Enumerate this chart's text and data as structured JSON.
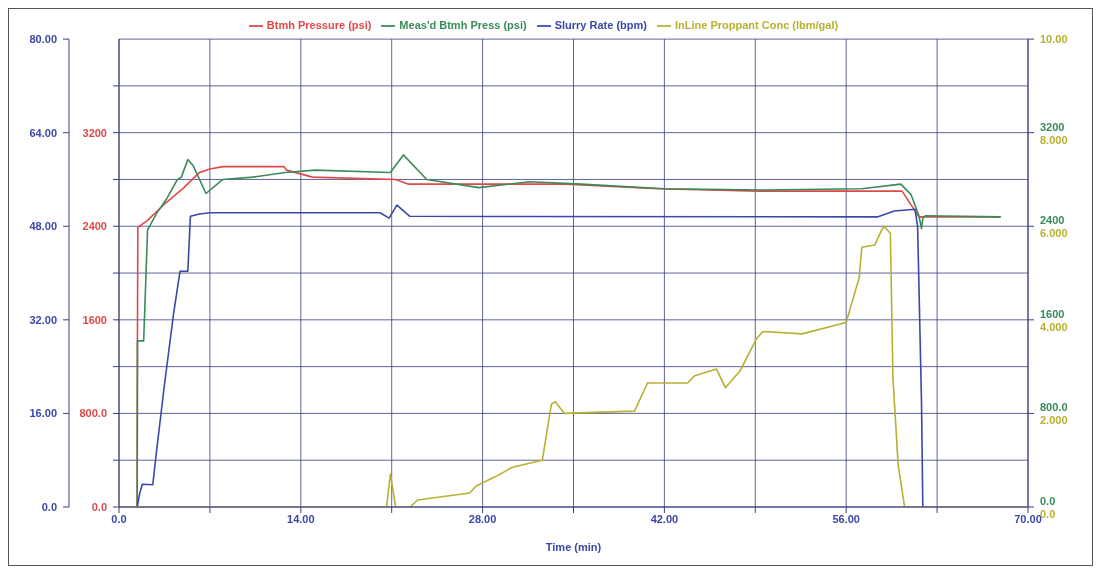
{
  "chart_data": {
    "type": "line",
    "xlabel": "Time (min)",
    "xlim": [
      0,
      70
    ],
    "xticks": [
      {
        "value": 0,
        "label": "0.0"
      },
      {
        "value": 7,
        "label": null
      },
      {
        "value": 14,
        "label": "14.00"
      },
      {
        "value": 21,
        "label": null
      },
      {
        "value": 28,
        "label": "28.00"
      },
      {
        "value": 35,
        "label": null
      },
      {
        "value": 42,
        "label": "42.00"
      },
      {
        "value": 49,
        "label": null
      },
      {
        "value": 56,
        "label": "56.00"
      },
      {
        "value": 63,
        "label": null
      },
      {
        "value": 70,
        "label": "70.00"
      }
    ],
    "ylim": [
      0,
      4000
    ],
    "yticks": [
      {
        "value": 0,
        "label": "0.0"
      },
      {
        "value": 400,
        "label": null
      },
      {
        "value": 800,
        "label": "800.0"
      },
      {
        "value": 1200,
        "label": null
      },
      1600,
      {
        "value": 2000,
        "label": null
      },
      2400,
      {
        "value": 2800,
        "label": null
      },
      3200,
      {
        "value": 3600,
        "label": null
      }
    ],
    "y2lim": [
      0,
      10
    ],
    "y2ticks": [
      {
        "value": 0,
        "label": "0.0"
      },
      {
        "value": 2,
        "label": "2.000"
      },
      {
        "value": 4,
        "label": "4.000"
      },
      {
        "value": 6,
        "label": "6.000"
      },
      {
        "value": 8,
        "label": "8.000"
      },
      {
        "value": 10,
        "label": "10.00"
      }
    ],
    "annotations": [
      "0.0",
      "800.0",
      "1600",
      "2400",
      "3200"
    ],
    "y3lim": [
      0,
      80
    ],
    "y3ticks": [
      {
        "value": 0,
        "label": "0.0"
      },
      {
        "value": 16,
        "label": "16.00"
      },
      {
        "value": 32,
        "label": "32.00"
      },
      {
        "value": 48,
        "label": "48.00"
      },
      {
        "value": 64,
        "label": "64.00"
      },
      {
        "value": 80,
        "label": "80.00"
      }
    ],
    "grid": true,
    "legend": "top",
    "line_style": "solid",
    "marker": "none",
    "series": [
      {
        "name": "Btmh Pressure (psi)",
        "color": "#e04848",
        "x": [
          1.4,
          1.42,
          1.45,
          2.2,
          3.5,
          5.0,
          6.2,
          7.0,
          8.0,
          12.7,
          12.9,
          14.9,
          21.3,
          22.3,
          28,
          34.4,
          41.5,
          49.3,
          58.5,
          60.3,
          61.6,
          67.9
        ],
        "values": [
          0,
          1440,
          2390,
          2450,
          2590,
          2730,
          2860,
          2890,
          2910,
          2910,
          2880,
          2820,
          2800,
          2760,
          2760,
          2760,
          2720,
          2700,
          2700,
          2700,
          2480,
          2480
        ]
      },
      {
        "name": "Meas'd Btmh Press (psi)",
        "color": "#3a8a5a",
        "x": [
          1.4,
          1.42,
          1.9,
          2.2,
          2.9,
          3.7,
          4.5,
          4.8,
          5.3,
          5.7,
          6.7,
          8.0,
          10.3,
          12.8,
          15.1,
          20.9,
          21.9,
          23.7,
          27.7,
          31.6,
          35.6,
          42,
          49.6,
          57.2,
          60.2,
          61,
          61.6,
          61.8,
          61.9,
          62.1,
          67.9
        ],
        "values": [
          0,
          1420,
          1420,
          2370,
          2510,
          2640,
          2800,
          2820,
          2970,
          2920,
          2680,
          2800,
          2820,
          2860,
          2880,
          2860,
          3010,
          2800,
          2730,
          2780,
          2760,
          2720,
          2710,
          2720,
          2760,
          2670,
          2490,
          2380,
          2470,
          2490,
          2480
        ]
      },
      {
        "name": "Slurry Rate (bpm)",
        "axis": "y3",
        "color": "#3a48a8",
        "x": [
          1.4,
          1.6,
          1.8,
          2.6,
          2.9,
          3.5,
          4.2,
          4.7,
          5.3,
          5.5,
          6.2,
          7.0,
          20.1,
          20.8,
          21.4,
          22.4,
          58.4,
          59.7,
          61.3,
          61.5,
          61.8,
          61.9,
          62.2
        ],
        "values": [
          0,
          2.4,
          3.9,
          3.8,
          9.7,
          20.9,
          33,
          40.3,
          40.3,
          49.7,
          50.1,
          50.3,
          50.3,
          49.4,
          51.6,
          49.7,
          49.6,
          50.6,
          50.9,
          48,
          17.8,
          0,
          0
        ]
      },
      {
        "name": "InLine Proppant Conc (lbm/gal)",
        "axis": "y2",
        "color": "#b8b030",
        "x": [
          0,
          20.6,
          20.9,
          21.3,
          22.4,
          23,
          27,
          27.5,
          29,
          30.3,
          32.6,
          33.3,
          33.6,
          34.3,
          39.7,
          40.7,
          43.8,
          44.3,
          46,
          46.7,
          47.8,
          49.1,
          49.6,
          52.6,
          55.4,
          56,
          57,
          57.2,
          58.2,
          58.7,
          58.9,
          59.4,
          59.6,
          60,
          60.5,
          69.9
        ],
        "values": [
          0,
          0,
          0.7,
          0,
          0,
          0.15,
          0.3,
          0.45,
          0.65,
          0.85,
          1.0,
          2.2,
          2.25,
          2.0,
          2.05,
          2.65,
          2.65,
          2.8,
          2.95,
          2.55,
          2.9,
          3.6,
          3.75,
          3.7,
          3.9,
          3.95,
          4.9,
          5.55,
          5.6,
          5.9,
          6.0,
          5.85,
          2.75,
          0.9,
          0,
          0
        ]
      }
    ]
  }
}
